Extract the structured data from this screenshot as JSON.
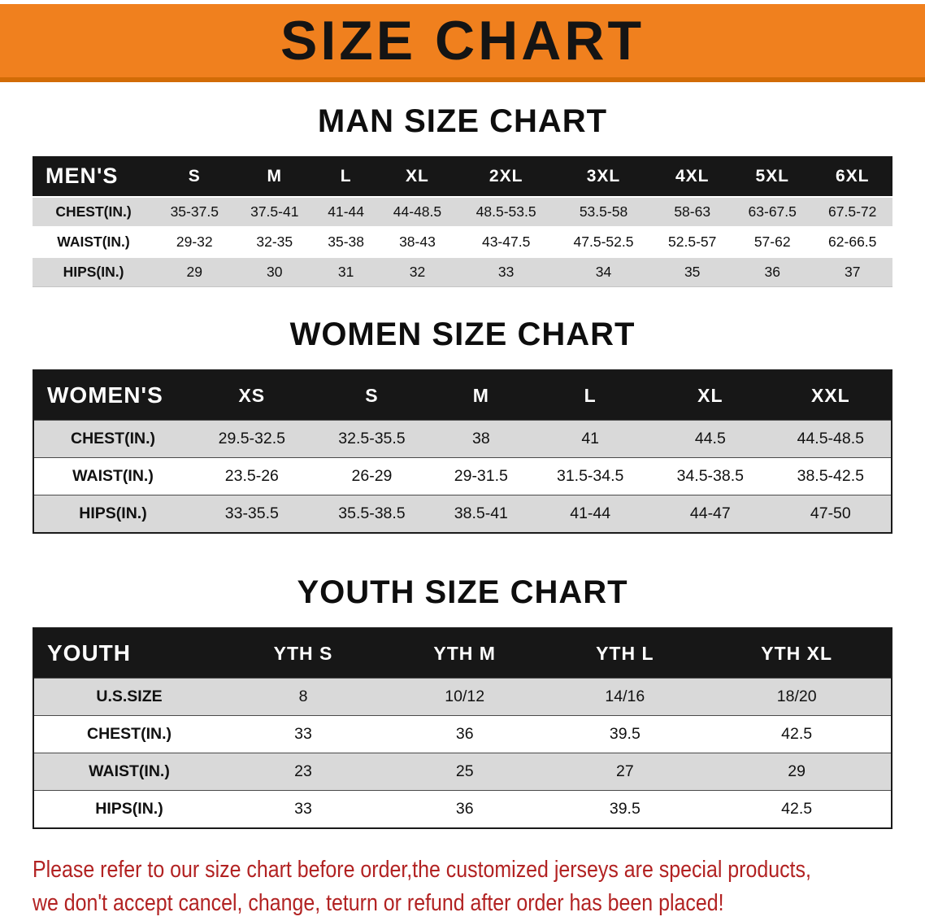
{
  "banner": {
    "title": "SIZE CHART",
    "bg_color": "#f0801e",
    "text_color": "#141414"
  },
  "sections": [
    {
      "id": "men",
      "heading": "MAN SIZE CHART",
      "group_label": "MEN'S",
      "columns": [
        "S",
        "M",
        "L",
        "XL",
        "2XL",
        "3XL",
        "4XL",
        "5XL",
        "6XL"
      ],
      "rows": [
        {
          "label": "CHEST(IN.)",
          "values": [
            "35-37.5",
            "37.5-41",
            "41-44",
            "44-48.5",
            "48.5-53.5",
            "53.5-58",
            "58-63",
            "63-67.5",
            "67.5-72"
          ]
        },
        {
          "label": "WAIST(IN.)",
          "values": [
            "29-32",
            "32-35",
            "35-38",
            "38-43",
            "43-47.5",
            "47.5-52.5",
            "52.5-57",
            "57-62",
            "62-66.5"
          ]
        },
        {
          "label": "HIPS(IN.)",
          "values": [
            "29",
            "30",
            "31",
            "32",
            "33",
            "34",
            "35",
            "36",
            "37"
          ]
        }
      ]
    },
    {
      "id": "women",
      "heading": "WOMEN SIZE CHART",
      "group_label": "WOMEN'S",
      "columns": [
        "XS",
        "S",
        "M",
        "L",
        "XL",
        "XXL"
      ],
      "rows": [
        {
          "label": "CHEST(IN.)",
          "values": [
            "29.5-32.5",
            "32.5-35.5",
            "38",
            "41",
            "44.5",
            "44.5-48.5"
          ]
        },
        {
          "label": "WAIST(IN.)",
          "values": [
            "23.5-26",
            "26-29",
            "29-31.5",
            "31.5-34.5",
            "34.5-38.5",
            "38.5-42.5"
          ]
        },
        {
          "label": "HIPS(IN.)",
          "values": [
            "33-35.5",
            "35.5-38.5",
            "38.5-41",
            "41-44",
            "44-47",
            "47-50"
          ]
        }
      ]
    },
    {
      "id": "youth",
      "heading": "YOUTH SIZE CHART",
      "group_label": "YOUTH",
      "columns": [
        "YTH S",
        "YTH M",
        "YTH L",
        "YTH XL"
      ],
      "rows": [
        {
          "label": "U.S.SIZE",
          "values": [
            "8",
            "10/12",
            "14/16",
            "18/20"
          ]
        },
        {
          "label": "CHEST(IN.)",
          "values": [
            "33",
            "36",
            "39.5",
            "42.5"
          ]
        },
        {
          "label": "WAIST(IN.)",
          "values": [
            "23",
            "25",
            "27",
            "29"
          ]
        },
        {
          "label": "HIPS(IN.)",
          "values": [
            "33",
            "36",
            "39.5",
            "42.5"
          ]
        }
      ]
    }
  ],
  "disclaimer": {
    "color": "#b22222",
    "line1": "Please refer to our size chart before order,the customized jerseys are special products,",
    "line2": "we don't accept cancel, change, teturn or refund after order has been placed!"
  }
}
